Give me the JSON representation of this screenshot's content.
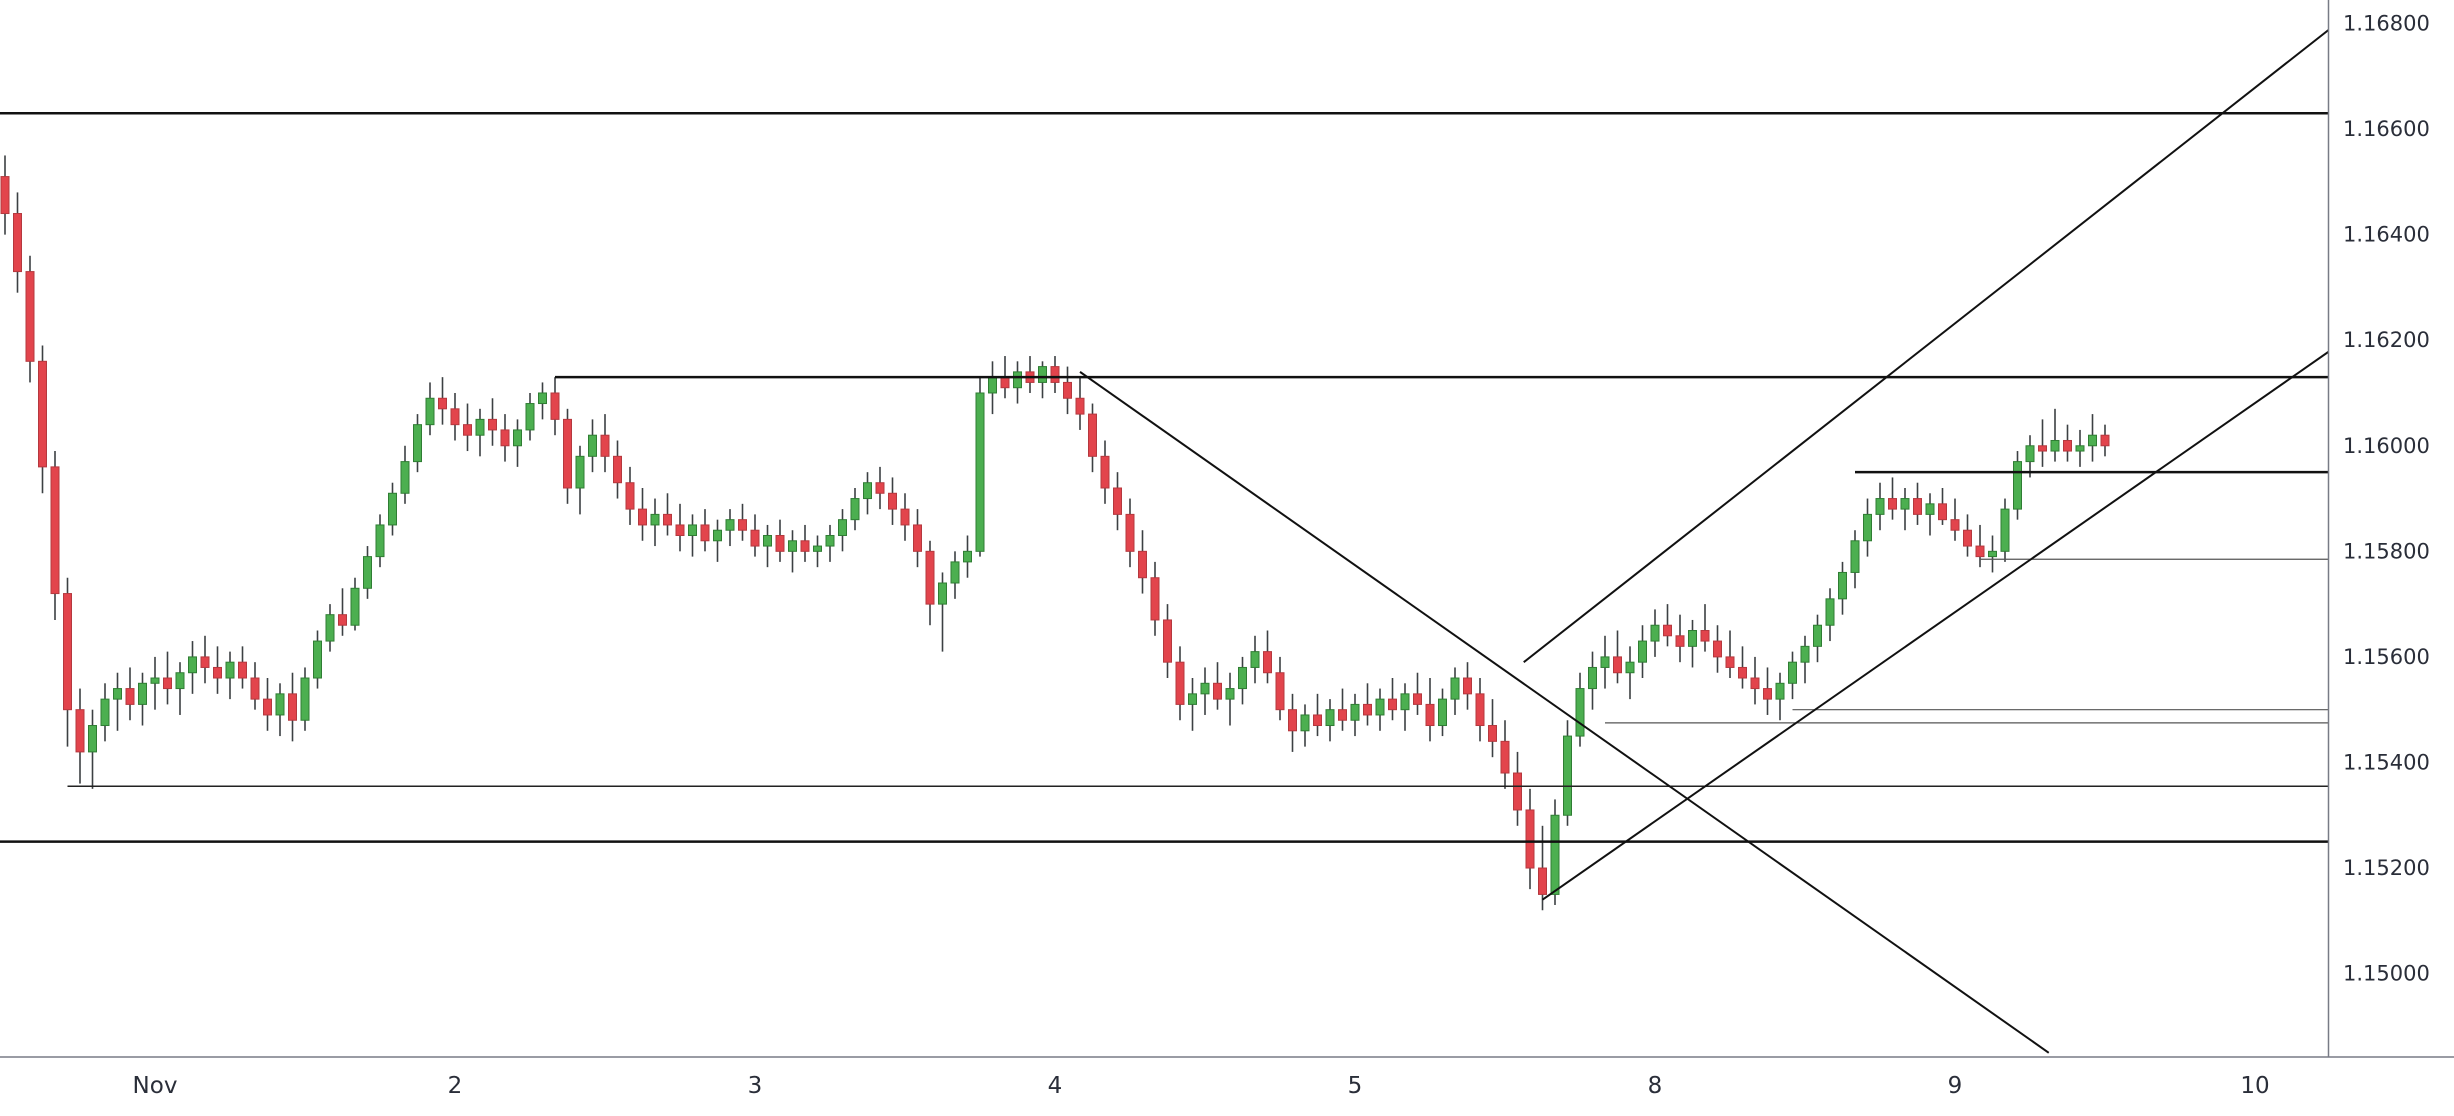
{
  "page": {
    "background": "#ffffff"
  },
  "chart_data": {
    "type": "candlestick",
    "title": "",
    "grid": "off",
    "legend": "none",
    "ylim": [
      1.14842,
      1.16845
    ],
    "y_axis": {
      "side": "right",
      "top_price": 1.168,
      "bottom_price": 1.15,
      "ticks": [
        {
          "label": "1.16800",
          "price": 1.168
        },
        {
          "label": "1.16600",
          "price": 1.166
        },
        {
          "label": "1.16400",
          "price": 1.164
        },
        {
          "label": "1.16200",
          "price": 1.162
        },
        {
          "label": "1.16000",
          "price": 1.16
        },
        {
          "label": "1.15800",
          "price": 1.158
        },
        {
          "label": "1.15600",
          "price": 1.156
        },
        {
          "label": "1.15400",
          "price": 1.154
        },
        {
          "label": "1.15200",
          "price": 1.152
        },
        {
          "label": "1.15000",
          "price": 1.15
        }
      ]
    },
    "x_axis": {
      "labels": [
        {
          "text": "Nov",
          "index": 12
        },
        {
          "text": "2",
          "index": 36
        },
        {
          "text": "3",
          "index": 60
        },
        {
          "text": "4",
          "index": 84
        },
        {
          "text": "5",
          "index": 108
        },
        {
          "text": "8",
          "index": 132
        },
        {
          "text": "9",
          "index": 156
        },
        {
          "text": "10",
          "index": 180
        }
      ]
    },
    "style": {
      "background": "#ffffff",
      "up_color": "#4caf50",
      "up_border": "#2f7d33",
      "down_color": "#e2444c",
      "down_border": "#b5383e",
      "wick_color": "#3c4043",
      "axis_text_color": "#2a2e39",
      "axis_line_color": "#787b86"
    },
    "overlays": {
      "horizontal_lines": [
        {
          "price": 1.1663,
          "from_index": null,
          "width": 2.5,
          "color": "#111111"
        },
        {
          "price": 1.1613,
          "from_index": 44,
          "width": 2.5,
          "color": "#111111"
        },
        {
          "price": 1.1595,
          "from_index": 148,
          "width": 2.5,
          "color": "#111111"
        },
        {
          "price": 1.15785,
          "from_index": 158,
          "width": 1.2,
          "color": "#555555"
        },
        {
          "price": 1.155,
          "from_index": 143,
          "width": 1.2,
          "color": "#555555"
        },
        {
          "price": 1.15475,
          "from_index": 128,
          "width": 1.2,
          "color": "#555555"
        },
        {
          "price": 1.15355,
          "from_index": 5,
          "width": 1.5,
          "color": "#222222"
        },
        {
          "price": 1.1525,
          "from_index": null,
          "width": 2.5,
          "color": "#111111"
        }
      ],
      "trend_lines": [
        {
          "i1": 86,
          "p1": 1.1614,
          "i2": 163.5,
          "p2": 1.1485,
          "width": 2,
          "color": "#111111"
        },
        {
          "i1": 121.5,
          "p1": 1.1559,
          "i2": 186,
          "p2": 1.1679,
          "width": 2,
          "color": "#111111"
        },
        {
          "i1": 123,
          "p1": 1.1514,
          "i2": 186,
          "p2": 1.1618,
          "width": 2,
          "color": "#111111"
        }
      ]
    },
    "candles": [
      [
        1.1651,
        1.1655,
        1.164,
        1.1644
      ],
      [
        1.1644,
        1.1648,
        1.1629,
        1.1633
      ],
      [
        1.1633,
        1.1636,
        1.1612,
        1.1616
      ],
      [
        1.1616,
        1.1619,
        1.1591,
        1.1596
      ],
      [
        1.1596,
        1.1599,
        1.1567,
        1.1572
      ],
      [
        1.1572,
        1.1575,
        1.1543,
        1.155
      ],
      [
        1.155,
        1.1554,
        1.1536,
        1.1542
      ],
      [
        1.1542,
        1.155,
        1.1535,
        1.1547
      ],
      [
        1.1547,
        1.1555,
        1.1544,
        1.1552
      ],
      [
        1.1552,
        1.1557,
        1.1546,
        1.1554
      ],
      [
        1.1554,
        1.1558,
        1.1548,
        1.1551
      ],
      [
        1.1551,
        1.1557,
        1.1547,
        1.1555
      ],
      [
        1.1555,
        1.156,
        1.155,
        1.1556
      ],
      [
        1.1556,
        1.1561,
        1.1551,
        1.1554
      ],
      [
        1.1554,
        1.1559,
        1.1549,
        1.1557
      ],
      [
        1.1557,
        1.1563,
        1.1553,
        1.156
      ],
      [
        1.156,
        1.1564,
        1.1555,
        1.1558
      ],
      [
        1.1558,
        1.1562,
        1.1553,
        1.1556
      ],
      [
        1.1556,
        1.1561,
        1.1552,
        1.1559
      ],
      [
        1.1559,
        1.1562,
        1.1554,
        1.1556
      ],
      [
        1.1556,
        1.1559,
        1.155,
        1.1552
      ],
      [
        1.1552,
        1.1556,
        1.1546,
        1.1549
      ],
      [
        1.1549,
        1.1555,
        1.1545,
        1.1553
      ],
      [
        1.1553,
        1.1557,
        1.1544,
        1.1548
      ],
      [
        1.1548,
        1.1558,
        1.1546,
        1.1556
      ],
      [
        1.1556,
        1.1565,
        1.1554,
        1.1563
      ],
      [
        1.1563,
        1.157,
        1.1561,
        1.1568
      ],
      [
        1.1568,
        1.1573,
        1.1564,
        1.1566
      ],
      [
        1.1566,
        1.1575,
        1.1565,
        1.1573
      ],
      [
        1.1573,
        1.1581,
        1.1571,
        1.1579
      ],
      [
        1.1579,
        1.1587,
        1.1577,
        1.1585
      ],
      [
        1.1585,
        1.1593,
        1.1583,
        1.1591
      ],
      [
        1.1591,
        1.16,
        1.1589,
        1.1597
      ],
      [
        1.1597,
        1.1606,
        1.1595,
        1.1604
      ],
      [
        1.1604,
        1.1612,
        1.1602,
        1.1609
      ],
      [
        1.1609,
        1.1613,
        1.1604,
        1.1607
      ],
      [
        1.1607,
        1.161,
        1.1601,
        1.1604
      ],
      [
        1.1604,
        1.1608,
        1.1599,
        1.1602
      ],
      [
        1.1602,
        1.1607,
        1.1598,
        1.1605
      ],
      [
        1.1605,
        1.1609,
        1.16,
        1.1603
      ],
      [
        1.1603,
        1.1606,
        1.1597,
        1.16
      ],
      [
        1.16,
        1.1605,
        1.1596,
        1.1603
      ],
      [
        1.1603,
        1.161,
        1.1601,
        1.1608
      ],
      [
        1.1608,
        1.1612,
        1.1605,
        1.161
      ],
      [
        1.161,
        1.1613,
        1.1602,
        1.1605
      ],
      [
        1.1605,
        1.1607,
        1.1589,
        1.1592
      ],
      [
        1.1592,
        1.16,
        1.1587,
        1.1598
      ],
      [
        1.1598,
        1.1605,
        1.1595,
        1.1602
      ],
      [
        1.1602,
        1.1606,
        1.1595,
        1.1598
      ],
      [
        1.1598,
        1.1601,
        1.159,
        1.1593
      ],
      [
        1.1593,
        1.1596,
        1.1585,
        1.1588
      ],
      [
        1.1588,
        1.1592,
        1.1582,
        1.1585
      ],
      [
        1.1585,
        1.159,
        1.1581,
        1.1587
      ],
      [
        1.1587,
        1.1591,
        1.1583,
        1.1585
      ],
      [
        1.1585,
        1.1589,
        1.158,
        1.1583
      ],
      [
        1.1583,
        1.1587,
        1.1579,
        1.1585
      ],
      [
        1.1585,
        1.1588,
        1.158,
        1.1582
      ],
      [
        1.1582,
        1.1586,
        1.1578,
        1.1584
      ],
      [
        1.1584,
        1.1588,
        1.1581,
        1.1586
      ],
      [
        1.1586,
        1.1589,
        1.1582,
        1.1584
      ],
      [
        1.1584,
        1.1587,
        1.1579,
        1.1581
      ],
      [
        1.1581,
        1.1585,
        1.1577,
        1.1583
      ],
      [
        1.1583,
        1.1586,
        1.1578,
        1.158
      ],
      [
        1.158,
        1.1584,
        1.1576,
        1.1582
      ],
      [
        1.1582,
        1.1585,
        1.1578,
        1.158
      ],
      [
        1.158,
        1.1583,
        1.1577,
        1.1581
      ],
      [
        1.1581,
        1.1585,
        1.1578,
        1.1583
      ],
      [
        1.1583,
        1.1588,
        1.158,
        1.1586
      ],
      [
        1.1586,
        1.1592,
        1.1584,
        1.159
      ],
      [
        1.159,
        1.1595,
        1.1587,
        1.1593
      ],
      [
        1.1593,
        1.1596,
        1.1588,
        1.1591
      ],
      [
        1.1591,
        1.1594,
        1.1585,
        1.1588
      ],
      [
        1.1588,
        1.1591,
        1.1582,
        1.1585
      ],
      [
        1.1585,
        1.1588,
        1.1577,
        1.158
      ],
      [
        1.158,
        1.1582,
        1.1566,
        1.157
      ],
      [
        1.157,
        1.1576,
        1.1561,
        1.1574
      ],
      [
        1.1574,
        1.158,
        1.1571,
        1.1578
      ],
      [
        1.1578,
        1.1583,
        1.1575,
        1.158
      ],
      [
        1.158,
        1.1613,
        1.1579,
        1.161
      ],
      [
        1.161,
        1.1616,
        1.1606,
        1.1613
      ],
      [
        1.1613,
        1.1617,
        1.1609,
        1.1611
      ],
      [
        1.1611,
        1.1616,
        1.1608,
        1.1614
      ],
      [
        1.1614,
        1.1617,
        1.161,
        1.1612
      ],
      [
        1.1612,
        1.1616,
        1.1609,
        1.1615
      ],
      [
        1.1615,
        1.1617,
        1.161,
        1.1612
      ],
      [
        1.1612,
        1.1615,
        1.1606,
        1.1609
      ],
      [
        1.1609,
        1.1613,
        1.1603,
        1.1606
      ],
      [
        1.1606,
        1.1608,
        1.1595,
        1.1598
      ],
      [
        1.1598,
        1.1601,
        1.1589,
        1.1592
      ],
      [
        1.1592,
        1.1595,
        1.1584,
        1.1587
      ],
      [
        1.1587,
        1.159,
        1.1577,
        1.158
      ],
      [
        1.158,
        1.1584,
        1.1572,
        1.1575
      ],
      [
        1.1575,
        1.1578,
        1.1564,
        1.1567
      ],
      [
        1.1567,
        1.157,
        1.1556,
        1.1559
      ],
      [
        1.1559,
        1.1562,
        1.1548,
        1.1551
      ],
      [
        1.1551,
        1.1556,
        1.1546,
        1.1553
      ],
      [
        1.1553,
        1.1558,
        1.1549,
        1.1555
      ],
      [
        1.1555,
        1.1559,
        1.155,
        1.1552
      ],
      [
        1.1552,
        1.1557,
        1.1547,
        1.1554
      ],
      [
        1.1554,
        1.156,
        1.1551,
        1.1558
      ],
      [
        1.1558,
        1.1564,
        1.1555,
        1.1561
      ],
      [
        1.1561,
        1.1565,
        1.1555,
        1.1557
      ],
      [
        1.1557,
        1.156,
        1.1548,
        1.155
      ],
      [
        1.155,
        1.1553,
        1.1542,
        1.1546
      ],
      [
        1.1546,
        1.1551,
        1.1543,
        1.1549
      ],
      [
        1.1549,
        1.1553,
        1.1545,
        1.1547
      ],
      [
        1.1547,
        1.1552,
        1.1544,
        1.155
      ],
      [
        1.155,
        1.1554,
        1.1546,
        1.1548
      ],
      [
        1.1548,
        1.1553,
        1.1545,
        1.1551
      ],
      [
        1.1551,
        1.1555,
        1.1547,
        1.1549
      ],
      [
        1.1549,
        1.1554,
        1.1546,
        1.1552
      ],
      [
        1.1552,
        1.1556,
        1.1548,
        1.155
      ],
      [
        1.155,
        1.1555,
        1.1546,
        1.1553
      ],
      [
        1.1553,
        1.1557,
        1.1549,
        1.1551
      ],
      [
        1.1551,
        1.1556,
        1.1544,
        1.1547
      ],
      [
        1.1547,
        1.1554,
        1.1545,
        1.1552
      ],
      [
        1.1552,
        1.1558,
        1.1549,
        1.1556
      ],
      [
        1.1556,
        1.1559,
        1.155,
        1.1553
      ],
      [
        1.1553,
        1.1556,
        1.1544,
        1.1547
      ],
      [
        1.1547,
        1.1552,
        1.1541,
        1.1544
      ],
      [
        1.1544,
        1.1548,
        1.1535,
        1.1538
      ],
      [
        1.1538,
        1.1542,
        1.1528,
        1.1531
      ],
      [
        1.1531,
        1.1535,
        1.1516,
        1.152
      ],
      [
        1.152,
        1.1528,
        1.1512,
        1.1515
      ],
      [
        1.1515,
        1.1533,
        1.1513,
        1.153
      ],
      [
        1.153,
        1.1548,
        1.1528,
        1.1545
      ],
      [
        1.1545,
        1.1557,
        1.1543,
        1.1554
      ],
      [
        1.1554,
        1.1561,
        1.155,
        1.1558
      ],
      [
        1.1558,
        1.1564,
        1.1554,
        1.156
      ],
      [
        1.156,
        1.1565,
        1.1555,
        1.1557
      ],
      [
        1.1557,
        1.1562,
        1.1552,
        1.1559
      ],
      [
        1.1559,
        1.1566,
        1.1556,
        1.1563
      ],
      [
        1.1563,
        1.1569,
        1.156,
        1.1566
      ],
      [
        1.1566,
        1.157,
        1.1562,
        1.1564
      ],
      [
        1.1564,
        1.1568,
        1.1559,
        1.1562
      ],
      [
        1.1562,
        1.1567,
        1.1558,
        1.1565
      ],
      [
        1.1565,
        1.157,
        1.1561,
        1.1563
      ],
      [
        1.1563,
        1.1566,
        1.1557,
        1.156
      ],
      [
        1.156,
        1.1565,
        1.1556,
        1.1558
      ],
      [
        1.1558,
        1.1562,
        1.1554,
        1.1556
      ],
      [
        1.1556,
        1.156,
        1.1551,
        1.1554
      ],
      [
        1.1554,
        1.1558,
        1.1549,
        1.1552
      ],
      [
        1.1552,
        1.1557,
        1.1548,
        1.1555
      ],
      [
        1.1555,
        1.1561,
        1.1552,
        1.1559
      ],
      [
        1.1559,
        1.1564,
        1.1555,
        1.1562
      ],
      [
        1.1562,
        1.1568,
        1.1559,
        1.1566
      ],
      [
        1.1566,
        1.1573,
        1.1563,
        1.1571
      ],
      [
        1.1571,
        1.1578,
        1.1568,
        1.1576
      ],
      [
        1.1576,
        1.1584,
        1.1573,
        1.1582
      ],
      [
        1.1582,
        1.159,
        1.1579,
        1.1587
      ],
      [
        1.1587,
        1.1593,
        1.1584,
        1.159
      ],
      [
        1.159,
        1.1594,
        1.1586,
        1.1588
      ],
      [
        1.1588,
        1.1592,
        1.1584,
        1.159
      ],
      [
        1.159,
        1.1593,
        1.1585,
        1.1587
      ],
      [
        1.1587,
        1.1591,
        1.1583,
        1.1589
      ],
      [
        1.1589,
        1.1592,
        1.1585,
        1.1586
      ],
      [
        1.1586,
        1.159,
        1.1582,
        1.1584
      ],
      [
        1.1584,
        1.1587,
        1.1579,
        1.1581
      ],
      [
        1.1581,
        1.1585,
        1.1577,
        1.1579
      ],
      [
        1.1579,
        1.1583,
        1.1576,
        1.158
      ],
      [
        1.158,
        1.159,
        1.1578,
        1.1588
      ],
      [
        1.1588,
        1.1599,
        1.1586,
        1.1597
      ],
      [
        1.1597,
        1.1602,
        1.1594,
        1.16
      ],
      [
        1.16,
        1.1605,
        1.1596,
        1.1599
      ],
      [
        1.1599,
        1.1607,
        1.1597,
        1.1601
      ],
      [
        1.1601,
        1.1604,
        1.1597,
        1.1599
      ],
      [
        1.1599,
        1.1603,
        1.1596,
        1.16
      ],
      [
        1.16,
        1.1606,
        1.1597,
        1.1602
      ],
      [
        1.1602,
        1.1604,
        1.1598,
        1.16
      ]
    ]
  }
}
